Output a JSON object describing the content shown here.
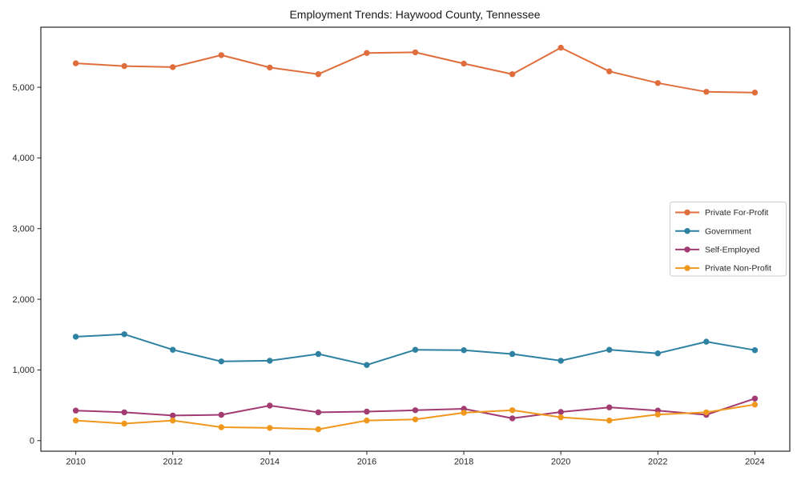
{
  "chart_data": {
    "type": "line",
    "title": "Employment Trends: Haywood County, Tennessee",
    "xlabel": "",
    "ylabel": "",
    "x": [
      2010,
      2011,
      2012,
      2013,
      2014,
      2015,
      2016,
      2017,
      2018,
      2019,
      2020,
      2021,
      2022,
      2023,
      2024
    ],
    "series": [
      {
        "name": "Private For-Profit",
        "color": "#E06E3C",
        "values": [
          5340,
          5300,
          5285,
          5455,
          5280,
          5185,
          5485,
          5495,
          5335,
          5185,
          5560,
          5225,
          5060,
          4935,
          4925
        ]
      },
      {
        "name": "Government",
        "color": "#2E81A1",
        "values": [
          1470,
          1505,
          1285,
          1120,
          1130,
          1225,
          1070,
          1285,
          1280,
          1225,
          1130,
          1285,
          1235,
          1400,
          1280
        ]
      },
      {
        "name": "Self-Employed",
        "color": "#A23B72",
        "values": [
          425,
          400,
          355,
          365,
          495,
          400,
          410,
          430,
          450,
          315,
          405,
          470,
          425,
          365,
          595
        ]
      },
      {
        "name": "Private Non-Profit",
        "color": "#F0981E",
        "values": [
          285,
          240,
          285,
          190,
          180,
          160,
          285,
          300,
          395,
          430,
          330,
          285,
          370,
          400,
          510
        ]
      }
    ],
    "xlim": [
      2009.28,
      2024.72
    ],
    "ylim": [
      -150,
      5850
    ],
    "x_ticks": [
      2010,
      2012,
      2014,
      2016,
      2018,
      2020,
      2022,
      2024
    ],
    "y_ticks": [
      0,
      1000,
      2000,
      3000,
      4000,
      5000
    ],
    "y_tick_labels": [
      "0",
      "1,000",
      "2,000",
      "3,000",
      "4,000",
      "5,000"
    ],
    "grid": false,
    "legend_position": "center-right",
    "marker": "circle",
    "axis_color": "#262626"
  }
}
